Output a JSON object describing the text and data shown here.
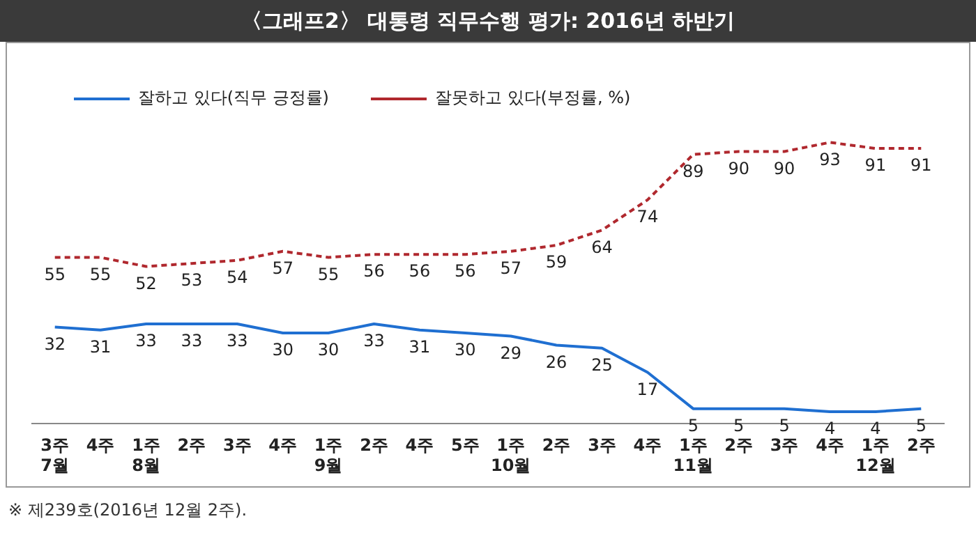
{
  "chart_data": {
    "type": "line",
    "title": "〈그래프2〉 대통령 직무수행 평가: 2016년 하반기",
    "categories": [
      "3주\n7월",
      "4주",
      "1주\n8월",
      "2주",
      "3주",
      "4주",
      "1주\n9월",
      "2주",
      "4주",
      "5주",
      "1주\n10월",
      "2주",
      "3주",
      "4주",
      "1주\n11월",
      "2주",
      "3주",
      "4주",
      "1주\n12월",
      "2주"
    ],
    "series": [
      {
        "name": "잘하고 있다(직무 긍정률)",
        "color": "#1f6fd1",
        "line_style": "solid",
        "values": [
          32,
          31,
          33,
          33,
          33,
          30,
          30,
          33,
          31,
          30,
          29,
          26,
          25,
          17,
          5,
          5,
          5,
          4,
          4,
          5
        ]
      },
      {
        "name": "잘못하고 있다(부정률, %)",
        "color": "#b0282e",
        "line_style": "dashed",
        "values": [
          55,
          55,
          52,
          53,
          54,
          57,
          55,
          56,
          56,
          56,
          57,
          59,
          64,
          74,
          89,
          90,
          90,
          93,
          91,
          91
        ]
      }
    ],
    "data_labels": true,
    "grid": false,
    "legend": "top left",
    "marker": "none",
    "tick_labels": "x",
    "annotations": [
      "※ 제239호(2016년 12월 2주)."
    ]
  }
}
